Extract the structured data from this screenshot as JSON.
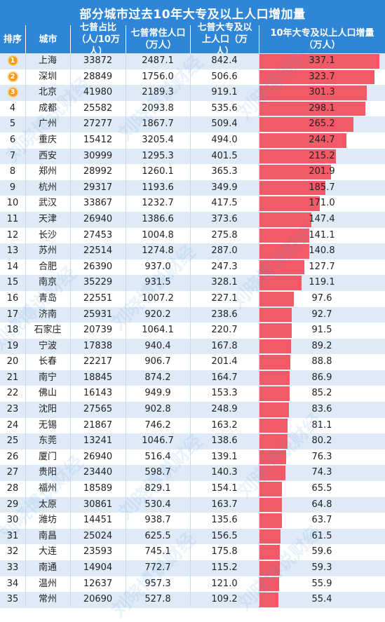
{
  "title": "部分城市过去10年大专及以上人口增加量",
  "headers": {
    "rank": "排序",
    "city": "城市",
    "ratio": "七普占比（人/10万人）",
    "pop": "七普常住人口（万人）",
    "edu": "七普大专及以上人口（万人）",
    "increase": "10年大专及以上人口增量（万人）"
  },
  "watermark": "刘晓博说财经",
  "colors": {
    "header": "#2f86d6",
    "bar": "#f25a67",
    "stripe": "#dfeaf7",
    "medal": "#f39a1c"
  },
  "chart_data": {
    "type": "table",
    "title": "部分城市过去10年大专及以上人口增加量",
    "columns": [
      "排序",
      "城市",
      "七普占比（人/10万人）",
      "七普常住人口（万人）",
      "七普大专及以上人口（万人）",
      "10年大专及以上人口增量（万人）"
    ],
    "bar_column": "10年大专及以上人口增量（万人）",
    "bar_max": 337.1,
    "rows": [
      {
        "rank": "1",
        "city": "上海",
        "ratio": "33872",
        "pop": "2487.1",
        "edu": "842.4",
        "increase": 337.1
      },
      {
        "rank": "2",
        "city": "深圳",
        "ratio": "28849",
        "pop": "1756.0",
        "edu": "506.6",
        "increase": 323.7
      },
      {
        "rank": "3",
        "city": "北京",
        "ratio": "41980",
        "pop": "2189.3",
        "edu": "919.1",
        "increase": 301.3
      },
      {
        "rank": "4",
        "city": "成都",
        "ratio": "25582",
        "pop": "2093.8",
        "edu": "535.6",
        "increase": 298.1
      },
      {
        "rank": "5",
        "city": "广州",
        "ratio": "27277",
        "pop": "1867.7",
        "edu": "509.4",
        "increase": 265.2
      },
      {
        "rank": "6",
        "city": "重庆",
        "ratio": "15412",
        "pop": "3205.4",
        "edu": "494.0",
        "increase": 244.7
      },
      {
        "rank": "7",
        "city": "西安",
        "ratio": "30999",
        "pop": "1295.3",
        "edu": "401.5",
        "increase": 215.2
      },
      {
        "rank": "8",
        "city": "郑州",
        "ratio": "28992",
        "pop": "1260.1",
        "edu": "365.3",
        "increase": 201.9
      },
      {
        "rank": "9",
        "city": "杭州",
        "ratio": "29317",
        "pop": "1193.6",
        "edu": "349.9",
        "increase": 185.7
      },
      {
        "rank": "10",
        "city": "武汉",
        "ratio": "33867",
        "pop": "1232.7",
        "edu": "417.5",
        "increase": 171.0
      },
      {
        "rank": "11",
        "city": "天津",
        "ratio": "26940",
        "pop": "1386.6",
        "edu": "373.6",
        "increase": 147.4
      },
      {
        "rank": "12",
        "city": "长沙",
        "ratio": "27453",
        "pop": "1004.8",
        "edu": "275.8",
        "increase": 141.1
      },
      {
        "rank": "13",
        "city": "苏州",
        "ratio": "22514",
        "pop": "1274.8",
        "edu": "287.0",
        "increase": 140.8
      },
      {
        "rank": "14",
        "city": "合肥",
        "ratio": "26390",
        "pop": "937.0",
        "edu": "247.3",
        "increase": 127.7
      },
      {
        "rank": "15",
        "city": "南京",
        "ratio": "35229",
        "pop": "931.5",
        "edu": "328.1",
        "increase": 119.1
      },
      {
        "rank": "16",
        "city": "青岛",
        "ratio": "22551",
        "pop": "1007.2",
        "edu": "227.1",
        "increase": 97.6
      },
      {
        "rank": "17",
        "city": "济南",
        "ratio": "25931",
        "pop": "920.2",
        "edu": "238.6",
        "increase": 92.7
      },
      {
        "rank": "18",
        "city": "石家庄",
        "ratio": "20739",
        "pop": "1064.1",
        "edu": "220.7",
        "increase": 91.5
      },
      {
        "rank": "19",
        "city": "宁波",
        "ratio": "17838",
        "pop": "940.4",
        "edu": "167.8",
        "increase": 89.2
      },
      {
        "rank": "20",
        "city": "长春",
        "ratio": "22217",
        "pop": "906.7",
        "edu": "201.4",
        "increase": 88.8
      },
      {
        "rank": "21",
        "city": "南宁",
        "ratio": "18845",
        "pop": "874.2",
        "edu": "164.7",
        "increase": 86.9
      },
      {
        "rank": "22",
        "city": "佛山",
        "ratio": "16143",
        "pop": "949.9",
        "edu": "153.3",
        "increase": 85.2
      },
      {
        "rank": "23",
        "city": "沈阳",
        "ratio": "27565",
        "pop": "902.8",
        "edu": "248.9",
        "increase": 83.6
      },
      {
        "rank": "24",
        "city": "无锡",
        "ratio": "21867",
        "pop": "746.2",
        "edu": "163.2",
        "increase": 81.1
      },
      {
        "rank": "25",
        "city": "东莞",
        "ratio": "13241",
        "pop": "1046.7",
        "edu": "138.6",
        "increase": 80.2
      },
      {
        "rank": "26",
        "city": "厦门",
        "ratio": "26940",
        "pop": "516.4",
        "edu": "139.1",
        "increase": 76.3
      },
      {
        "rank": "27",
        "city": "贵阳",
        "ratio": "23440",
        "pop": "598.7",
        "edu": "140.3",
        "increase": 74.3
      },
      {
        "rank": "28",
        "city": "福州",
        "ratio": "18589",
        "pop": "829.1",
        "edu": "154.1",
        "increase": 65.5
      },
      {
        "rank": "29",
        "city": "太原",
        "ratio": "30861",
        "pop": "530.4",
        "edu": "163.7",
        "increase": 64.8
      },
      {
        "rank": "30",
        "city": "潍坊",
        "ratio": "14451",
        "pop": "938.7",
        "edu": "135.6",
        "increase": 63.7
      },
      {
        "rank": "31",
        "city": "南昌",
        "ratio": "25024",
        "pop": "625.5",
        "edu": "156.5",
        "increase": 61.5
      },
      {
        "rank": "32",
        "city": "大连",
        "ratio": "23593",
        "pop": "745.1",
        "edu": "175.8",
        "increase": 59.6
      },
      {
        "rank": "33",
        "city": "南通",
        "ratio": "14904",
        "pop": "772.7",
        "edu": "115.2",
        "increase": 59.3
      },
      {
        "rank": "34",
        "city": "温州",
        "ratio": "12637",
        "pop": "957.3",
        "edu": "121.0",
        "increase": 55.9
      },
      {
        "rank": "35",
        "city": "常州",
        "ratio": "20690",
        "pop": "527.8",
        "edu": "109.2",
        "increase": 55.4
      }
    ]
  }
}
